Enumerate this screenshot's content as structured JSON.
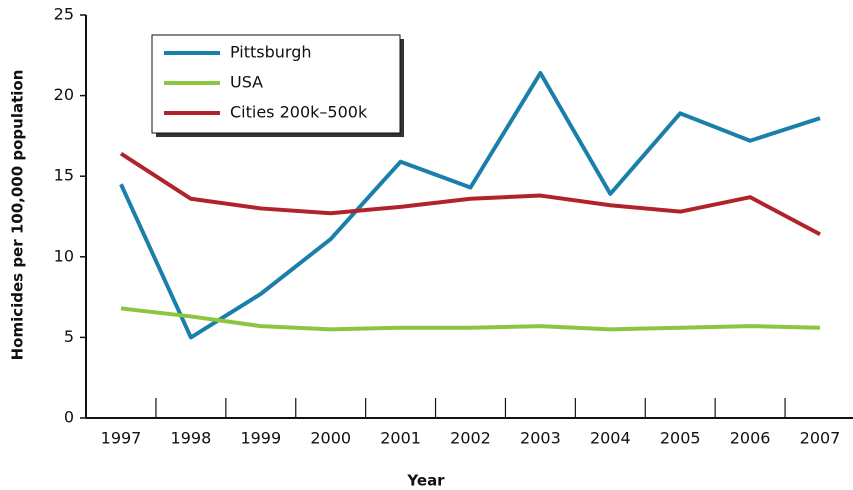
{
  "chart_data": {
    "type": "line",
    "xlabel": "Year",
    "ylabel": "Homicides per 100,000 population",
    "categories": [
      "1997",
      "1998",
      "1999",
      "2000",
      "2001",
      "2002",
      "2003",
      "2004",
      "2005",
      "2006",
      "2007"
    ],
    "series": [
      {
        "name": "Pittsburgh",
        "color": "#1a80aa",
        "values": [
          14.5,
          5.0,
          7.7,
          11.1,
          15.9,
          14.3,
          21.4,
          13.9,
          18.9,
          17.2,
          18.6
        ]
      },
      {
        "name": "USA",
        "color": "#8cc63f",
        "values": [
          6.8,
          6.3,
          5.7,
          5.5,
          5.6,
          5.6,
          5.7,
          5.5,
          5.6,
          5.7,
          5.6
        ]
      },
      {
        "name": "Cities 200k–500k",
        "color": "#b0232a",
        "values": [
          16.4,
          13.6,
          13.0,
          12.7,
          13.1,
          13.6,
          13.8,
          13.2,
          12.8,
          13.7,
          11.4
        ]
      }
    ],
    "ylim": [
      0,
      25
    ],
    "yticks": [
      0,
      5,
      10,
      15,
      20,
      25
    ],
    "legend": "upper left"
  }
}
